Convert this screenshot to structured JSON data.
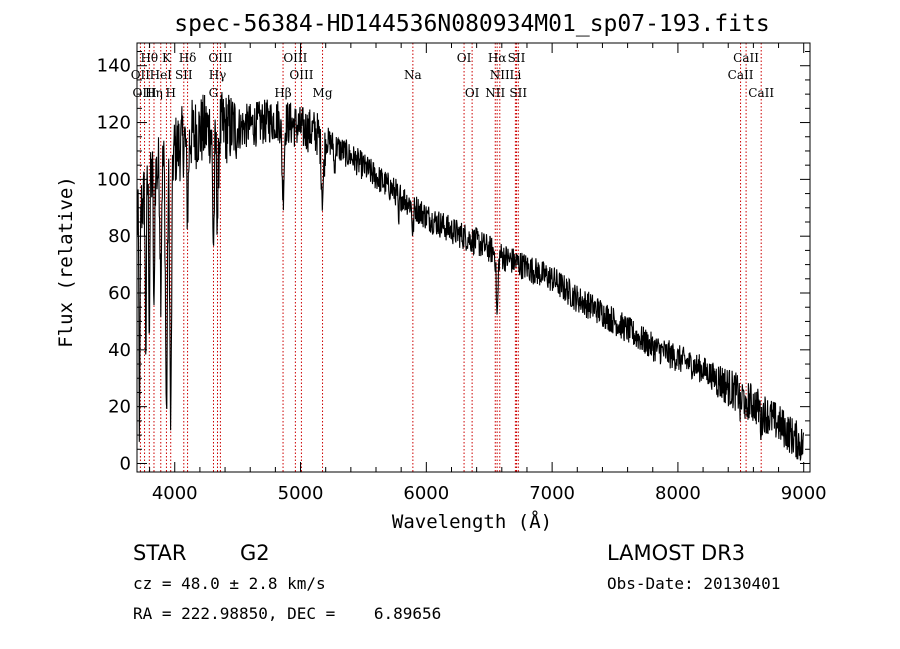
{
  "chart_data": {
    "type": "line",
    "title": "spec-56384-HD144536N080934M01_sp07-193.fits",
    "xlabel": "Wavelength (Å)",
    "ylabel": "Flux (relative)",
    "xlim": [
      3700,
      9050
    ],
    "ylim": [
      -3,
      148
    ],
    "x_ticks": [
      4000,
      5000,
      6000,
      7000,
      8000,
      9000
    ],
    "y_ticks": [
      0,
      20,
      40,
      60,
      80,
      100,
      120,
      140
    ],
    "series": [
      {
        "name": "spectrum",
        "color": "#000000",
        "continuum": [
          [
            3700,
            85
          ],
          [
            3800,
            100
          ],
          [
            3900,
            105
          ],
          [
            4000,
            110
          ],
          [
            4100,
            115
          ],
          [
            4200,
            117
          ],
          [
            4300,
            118
          ],
          [
            4400,
            118
          ],
          [
            4500,
            118
          ],
          [
            4600,
            119
          ],
          [
            4700,
            120
          ],
          [
            4800,
            121
          ],
          [
            4900,
            120
          ],
          [
            5000,
            118
          ],
          [
            5100,
            117
          ],
          [
            5200,
            114
          ],
          [
            5400,
            108
          ],
          [
            5600,
            101
          ],
          [
            5800,
            94
          ],
          [
            6000,
            87
          ],
          [
            6200,
            82
          ],
          [
            6400,
            78
          ],
          [
            6600,
            73
          ],
          [
            6800,
            69
          ],
          [
            7000,
            65
          ],
          [
            7200,
            58
          ],
          [
            7400,
            53
          ],
          [
            7600,
            47
          ],
          [
            7800,
            41
          ],
          [
            8000,
            37
          ],
          [
            8200,
            33
          ],
          [
            8400,
            27
          ],
          [
            8600,
            21
          ],
          [
            8800,
            14
          ],
          [
            9000,
            6
          ]
        ],
        "absorption_features": [
          {
            "wavelength": 3720,
            "depth": 80,
            "width": 6
          },
          {
            "wavelength": 3770,
            "depth": 55,
            "width": 6
          },
          {
            "wavelength": 3798,
            "depth": 50,
            "width": 6
          },
          {
            "wavelength": 3835,
            "depth": 55,
            "width": 6
          },
          {
            "wavelength": 3889,
            "depth": 40,
            "width": 8
          },
          {
            "wavelength": 3934,
            "depth": 90,
            "width": 10
          },
          {
            "wavelength": 3968,
            "depth": 95,
            "width": 10
          },
          {
            "wavelength": 4102,
            "depth": 25,
            "width": 10
          },
          {
            "wavelength": 4308,
            "depth": 40,
            "width": 10
          },
          {
            "wavelength": 4340,
            "depth": 30,
            "width": 10
          },
          {
            "wavelength": 4861,
            "depth": 25,
            "width": 12
          },
          {
            "wavelength": 5175,
            "depth": 20,
            "width": 14
          },
          {
            "wavelength": 5270,
            "depth": 10,
            "width": 6
          },
          {
            "wavelength": 5780,
            "depth": 12,
            "width": 6
          },
          {
            "wavelength": 5893,
            "depth": 10,
            "width": 8
          },
          {
            "wavelength": 6563,
            "depth": 22,
            "width": 10
          },
          {
            "wavelength": 8498,
            "depth": 6,
            "width": 8
          },
          {
            "wavelength": 8542,
            "depth": 7,
            "width": 8
          },
          {
            "wavelength": 8662,
            "depth": 6,
            "width": 8
          }
        ],
        "noise_amplitude": 5
      }
    ],
    "spectral_lines": [
      {
        "label": "Hθ",
        "wavelength": 3798,
        "row": 0
      },
      {
        "label": "K",
        "wavelength": 3934,
        "row": 0
      },
      {
        "label": "Hδ",
        "wavelength": 4102,
        "row": 0
      },
      {
        "label": "OIII",
        "wavelength": 4363,
        "row": 0
      },
      {
        "label": "OIII",
        "wavelength": 4959,
        "row": 0
      },
      {
        "label": "OI",
        "wavelength": 6300,
        "row": 0
      },
      {
        "label": "Hα",
        "wavelength": 6563,
        "row": 0
      },
      {
        "label": "SII",
        "wavelength": 6717,
        "row": 0
      },
      {
        "label": "CaII",
        "wavelength": 8542,
        "row": 0
      },
      {
        "label": "OII",
        "wavelength": 3727,
        "row": 1
      },
      {
        "label": "HeI",
        "wavelength": 3889,
        "row": 1
      },
      {
        "label": "SII",
        "wavelength": 4072,
        "row": 1
      },
      {
        "label": "Hγ",
        "wavelength": 4340,
        "row": 1
      },
      {
        "label": "OIII",
        "wavelength": 5007,
        "row": 1
      },
      {
        "label": "Na",
        "wavelength": 5893,
        "row": 1
      },
      {
        "label": "NII",
        "wavelength": 6584,
        "row": 1
      },
      {
        "label": "Li",
        "wavelength": 6708,
        "row": 1
      },
      {
        "label": "CaII",
        "wavelength": 8498,
        "row": 1
      },
      {
        "label": "OIII",
        "wavelength": 3760,
        "row": 2
      },
      {
        "label": "Hη",
        "wavelength": 3835,
        "row": 2
      },
      {
        "label": "H",
        "wavelength": 3968,
        "row": 2
      },
      {
        "label": "G",
        "wavelength": 4308,
        "row": 2
      },
      {
        "label": "Hβ",
        "wavelength": 4861,
        "row": 2
      },
      {
        "label": "Mg",
        "wavelength": 5175,
        "row": 2
      },
      {
        "label": "OI",
        "wavelength": 6364,
        "row": 2
      },
      {
        "label": "NII",
        "wavelength": 6548,
        "row": 2
      },
      {
        "label": "SII",
        "wavelength": 6731,
        "row": 2
      },
      {
        "label": "CaII",
        "wavelength": 8662,
        "row": 2
      }
    ],
    "line_marker_color": "#cc0000"
  },
  "info": {
    "object_class": "STAR",
    "subclass": "G2",
    "survey": "LAMOST DR3",
    "redshift": "cz = 48.0 ± 2.8 km/s",
    "obs_date": "Obs-Date: 20130401",
    "coordinates": "RA = 222.98850, DEC =    6.89656"
  }
}
